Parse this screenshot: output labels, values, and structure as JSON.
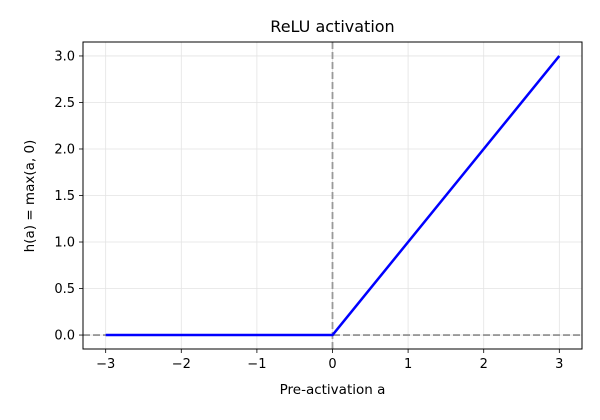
{
  "chart_data": {
    "type": "line",
    "title": "ReLU activation",
    "xlabel": "Pre-activation a",
    "ylabel": "h(a) = max(a, 0)",
    "xlim": [
      -3.3,
      3.3
    ],
    "ylim": [
      -0.15,
      3.15
    ],
    "xticks": [
      -3,
      -2,
      -1,
      0,
      1,
      2,
      3
    ],
    "xtick_labels": [
      "−3",
      "−2",
      "−1",
      "0",
      "1",
      "2",
      "3"
    ],
    "yticks": [
      0,
      0.5,
      1,
      1.5,
      2,
      2.5,
      3
    ],
    "ytick_labels": [
      "0.0",
      "0.5",
      "1.0",
      "1.5",
      "2.0",
      "2.5",
      "3.0"
    ],
    "grid": true,
    "series": [
      {
        "x": [
          -3,
          0,
          3
        ],
        "y": [
          0,
          0,
          3
        ],
        "color": "#0000ff"
      }
    ],
    "reference_lines": [
      {
        "orientation": "horizontal",
        "value": 0,
        "style": "dashed",
        "color": "#999999"
      },
      {
        "orientation": "vertical",
        "value": 0,
        "style": "dashed",
        "color": "#999999"
      }
    ]
  }
}
